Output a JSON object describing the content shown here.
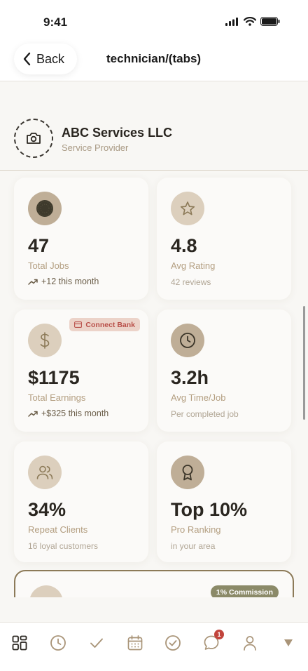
{
  "status": {
    "time": "9:41"
  },
  "header": {
    "back_label": "Back",
    "title": "technician/(tabs)"
  },
  "profile": {
    "name": "ABC Services LLC",
    "role": "Service Provider"
  },
  "stats": {
    "total_jobs": {
      "value": "47",
      "label": "Total Jobs",
      "trend": "+12 this month"
    },
    "avg_rating": {
      "value": "4.8",
      "label": "Avg Rating",
      "sub": "42 reviews"
    },
    "total_earnings": {
      "value": "$1175",
      "label": "Total Earnings",
      "trend": "+$325 this month",
      "badge": "Connect Bank"
    },
    "avg_time": {
      "value": "3.2h",
      "label": "Avg Time/Job",
      "sub": "Per completed job"
    },
    "repeat_clients": {
      "value": "34%",
      "label": "Repeat Clients",
      "sub": "16 loyal customers"
    },
    "pro_ranking": {
      "value": "Top 10%",
      "label": "Pro Ranking",
      "sub": "in your area"
    }
  },
  "promo": {
    "badge": "1% Commission"
  },
  "tab_bar": {
    "tabs": [
      "grid-icon",
      "clock-icon",
      "check-icon",
      "calendar-icon",
      "check-circle-icon",
      "chat-icon",
      "person-icon",
      "caret-down-icon"
    ],
    "chat_badge": "1"
  },
  "colors": {
    "accent": "#bfae97",
    "accent_light": "#dccfbd",
    "danger": "#c2443c",
    "promo_border": "#8c7a58"
  }
}
